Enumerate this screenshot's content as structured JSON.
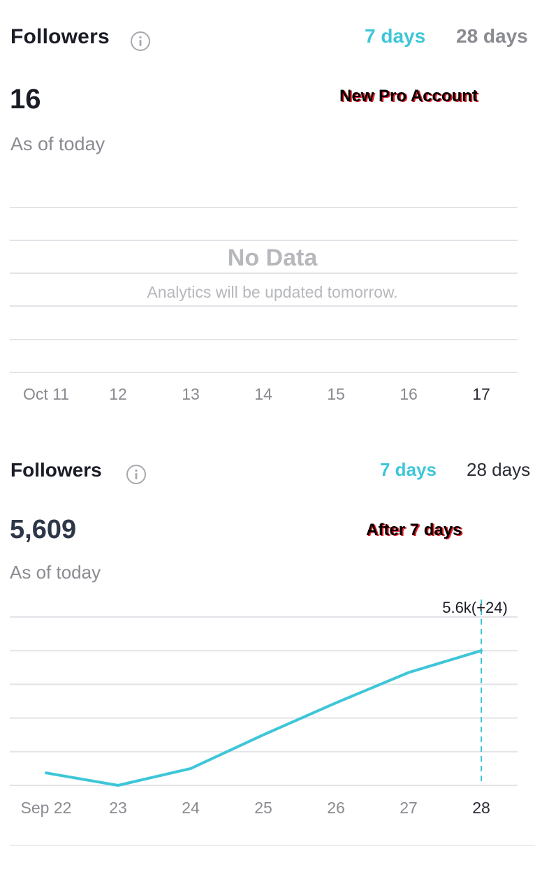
{
  "colors": {
    "accent": "#3ec6d8",
    "grid": "#e3e4e8",
    "tick_label": "#8a8b91",
    "tick_label_active": "#2a2c36",
    "badge_shadow": "#e0202a"
  },
  "panel_new": {
    "title": "Followers",
    "info_icon": "info-icon",
    "tabs": {
      "seven": "7 days",
      "twenty_eight": "28 days"
    },
    "active_tab": "7 days",
    "count": "16",
    "badge": "New Pro Account",
    "subtitle": "As of today",
    "empty_title": "No Data",
    "empty_message": "Analytics will be updated tomorrow.",
    "x_ticks": [
      "Oct 11",
      "12",
      "13",
      "14",
      "15",
      "16",
      "17"
    ]
  },
  "panel_after": {
    "title": "Followers",
    "info_icon": "info-icon",
    "tabs": {
      "seven": "7 days",
      "twenty_eight": "28 days"
    },
    "active_tab": "7 days",
    "count": "5,609",
    "badge": "After 7 days",
    "subtitle": "As of today",
    "tooltip": "5.6k(+24)"
  },
  "chart_data": {
    "type": "line",
    "categories": [
      "Sep 22",
      "23",
      "24",
      "25",
      "26",
      "27",
      "28"
    ],
    "series": [
      {
        "values": [
          0.74,
          0.0,
          1.0,
          3.0,
          4.9,
          6.7,
          8.0
        ]
      }
    ],
    "y_scale": "relative, unlabeled",
    "grid": true,
    "highlight_category": "28"
  }
}
